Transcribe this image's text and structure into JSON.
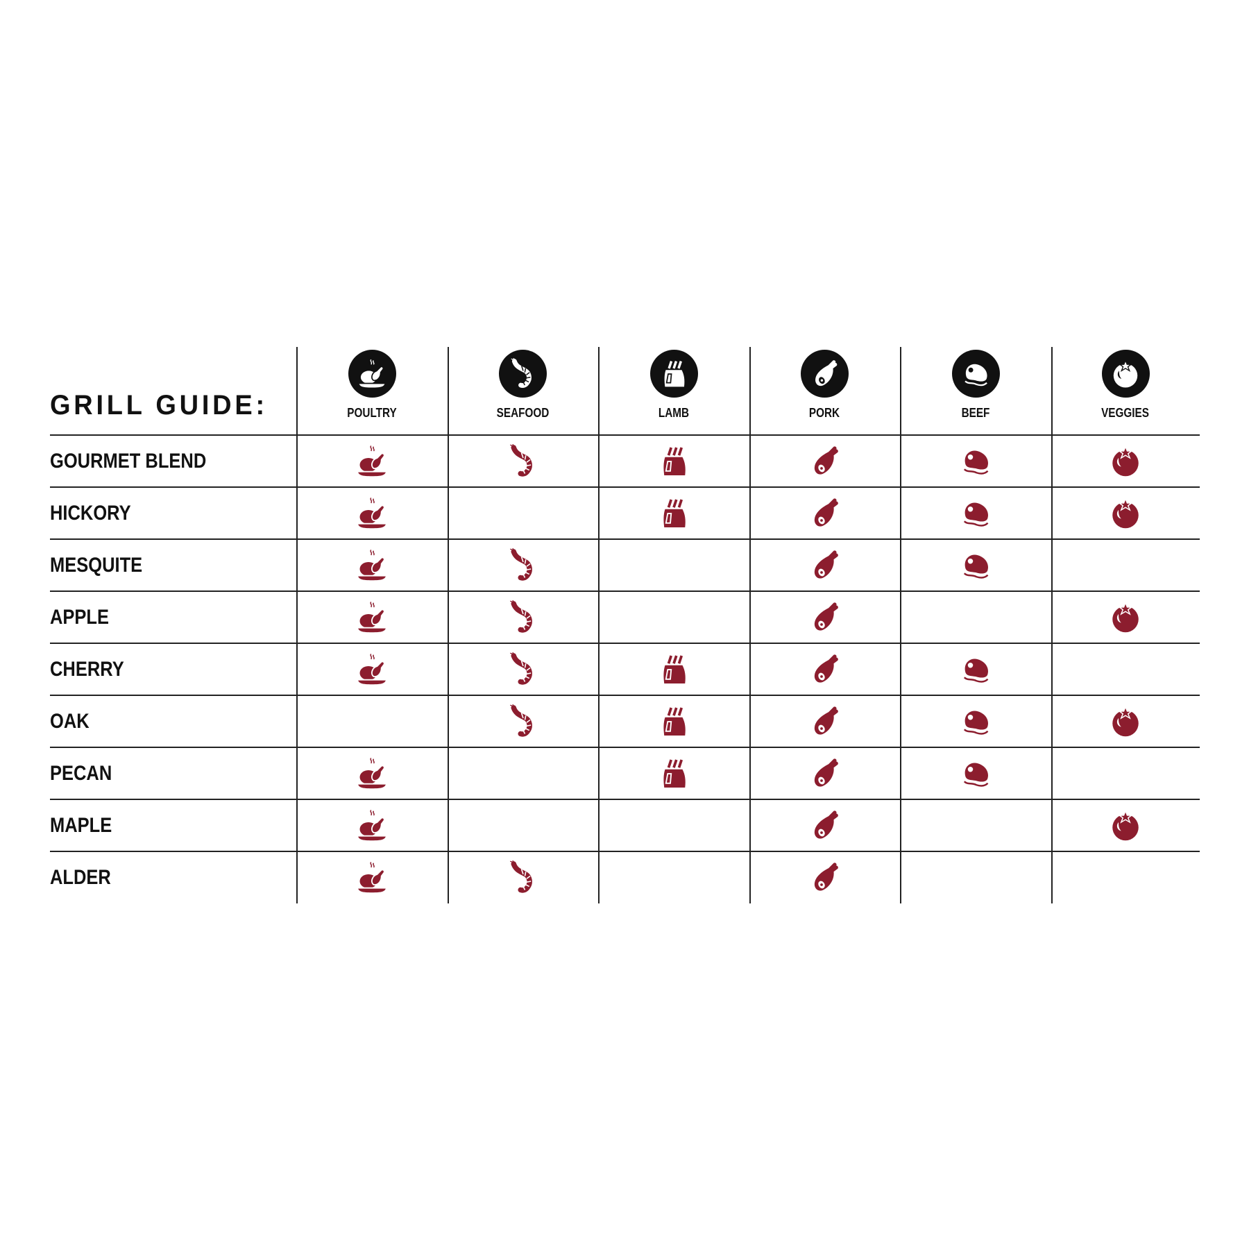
{
  "title": "GRILL GUIDE:",
  "accent_color": "#8c1d2e",
  "columns": [
    {
      "label": "POULTRY",
      "icon": "poultry-icon"
    },
    {
      "label": "SEAFOOD",
      "icon": "shrimp-icon"
    },
    {
      "label": "LAMB",
      "icon": "lamb-rack-icon"
    },
    {
      "label": "PORK",
      "icon": "ham-icon"
    },
    {
      "label": "BEEF",
      "icon": "steak-icon"
    },
    {
      "label": "VEGGIES",
      "icon": "tomato-icon"
    }
  ],
  "rows": [
    {
      "label": "GOURMET BLEND",
      "marks": [
        true,
        true,
        true,
        true,
        true,
        true
      ]
    },
    {
      "label": "HICKORY",
      "marks": [
        true,
        false,
        true,
        true,
        true,
        true
      ]
    },
    {
      "label": "MESQUITE",
      "marks": [
        true,
        true,
        false,
        true,
        true,
        false
      ]
    },
    {
      "label": "APPLE",
      "marks": [
        true,
        true,
        false,
        true,
        false,
        true
      ]
    },
    {
      "label": "CHERRY",
      "marks": [
        true,
        true,
        true,
        true,
        true,
        false
      ]
    },
    {
      "label": "OAK",
      "marks": [
        false,
        true,
        true,
        true,
        true,
        true
      ]
    },
    {
      "label": "PECAN",
      "marks": [
        true,
        false,
        true,
        true,
        true,
        false
      ]
    },
    {
      "label": "MAPLE",
      "marks": [
        true,
        false,
        false,
        true,
        false,
        true
      ]
    },
    {
      "label": "ALDER",
      "marks": [
        true,
        true,
        false,
        true,
        false,
        false
      ]
    }
  ]
}
